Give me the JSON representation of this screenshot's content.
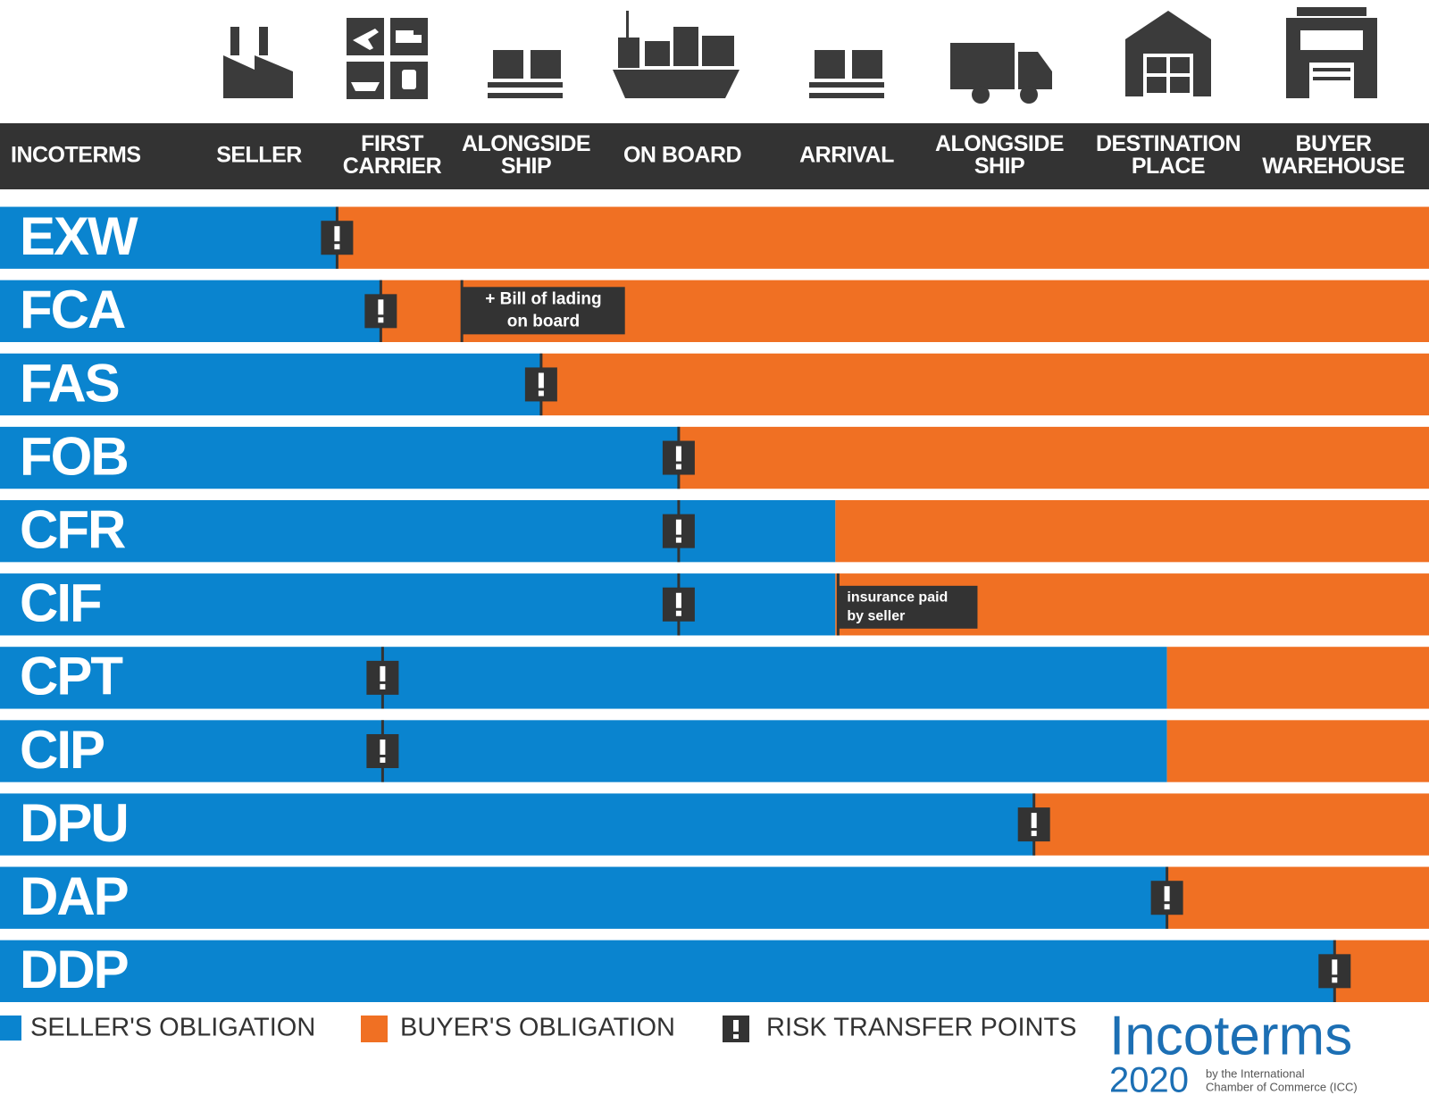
{
  "header": {
    "columns": [
      [
        "INCOTERMS"
      ],
      [
        "SELLER"
      ],
      [
        "FIRST",
        "CARRIER"
      ],
      [
        "ALONGSIDE",
        "SHIP"
      ],
      [
        "ON BOARD"
      ],
      [
        "ARRIVAL"
      ],
      [
        "ALONGSIDE",
        "SHIP"
      ],
      [
        "DESTINATION",
        "PLACE"
      ],
      [
        "BUYER",
        "WAREHOUSE"
      ]
    ]
  },
  "rows": [
    {
      "code": "EXW"
    },
    {
      "code": "FCA",
      "note": [
        "+ Bill of lading",
        "on board"
      ]
    },
    {
      "code": "FAS"
    },
    {
      "code": "FOB"
    },
    {
      "code": "CFR"
    },
    {
      "code": "CIF",
      "note": [
        "insurance paid",
        "by seller"
      ]
    },
    {
      "code": "CPT"
    },
    {
      "code": "CIP"
    },
    {
      "code": "DPU"
    },
    {
      "code": "DAP"
    },
    {
      "code": "DDP"
    }
  ],
  "legend": [
    "SELLER'S OBLIGATION",
    "BUYER'S OBLIGATION",
    "RISK TRANSFER POINTS"
  ],
  "logo": {
    "brand": "Incoterms",
    "year": "2020",
    "by": [
      "by the International",
      "Chamber of Commerce (ICC)"
    ]
  }
}
